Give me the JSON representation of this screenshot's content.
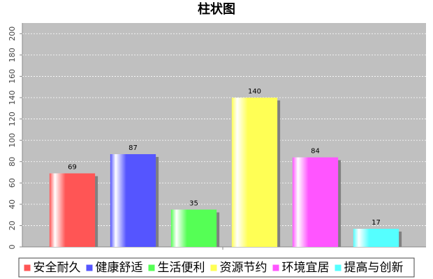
{
  "chart_data": {
    "type": "bar",
    "title": "柱状图",
    "categories": [
      null
    ],
    "series": [
      {
        "name": "安全耐久",
        "color": "#ff5555",
        "values": [
          69
        ]
      },
      {
        "name": "健康舒适",
        "color": "#5555ff",
        "values": [
          87
        ]
      },
      {
        "name": "生活便利",
        "color": "#55ff55",
        "values": [
          35
        ]
      },
      {
        "name": "资源节约",
        "color": "#ffff55",
        "values": [
          140
        ]
      },
      {
        "name": "环境宜居",
        "color": "#ff55ff",
        "values": [
          84
        ]
      },
      {
        "name": "提高与创新",
        "color": "#55ffff",
        "values": [
          17
        ]
      }
    ],
    "ylim": [
      0,
      210
    ],
    "yticks": [
      0,
      20,
      40,
      60,
      80,
      100,
      120,
      140,
      160,
      180,
      200
    ],
    "grid": true
  }
}
